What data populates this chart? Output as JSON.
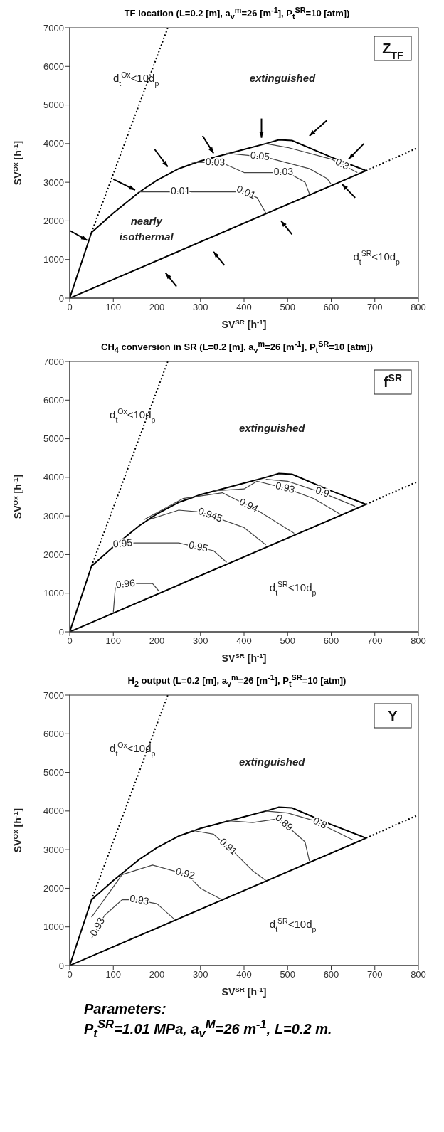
{
  "chart_data": [
    {
      "type": "line",
      "title": "TF location (L=0.2 [m], a$_{v}$$^{m}$=26 [m$^{-1}$], P$_{t}$$^{SR}$=10 [atm])",
      "xlabel": "SV$^{SR}$ [h$^{-1}$]",
      "ylabel": "SV$^{Ox}$ [h$^{-1}$]",
      "xlim": [
        0,
        800
      ],
      "ylim": [
        0,
        7000
      ],
      "xticks": [
        0,
        100,
        200,
        300,
        400,
        500,
        600,
        700,
        800
      ],
      "yticks": [
        0,
        1000,
        2000,
        3000,
        4000,
        5000,
        6000,
        7000
      ],
      "grid": false,
      "legend": false,
      "series": [
        {
          "color": "#000000",
          "x": [
            0,
            50,
            60,
            100,
            160,
            200,
            250,
            300,
            400,
            450,
            480,
            510,
            600,
            680
          ],
          "values": [
            0,
            1700,
            1800,
            2200,
            2750,
            3050,
            3350,
            3550,
            3850,
            4000,
            4100,
            4080,
            3650,
            3300
          ]
        },
        {
          "color": "#000000",
          "x": [
            0,
            680
          ],
          "values": [
            0,
            3300
          ]
        },
        {
          "color": "#000000",
          "line_style": "dotted",
          "x": [
            50,
            225
          ],
          "values": [
            1700,
            7000
          ]
        },
        {
          "color": "#000000",
          "line_style": "dotted",
          "x": [
            680,
            800
          ],
          "values": [
            3300,
            3900
          ]
        },
        {
          "name": "0.01",
          "color": "#444444",
          "x": [
            160,
            400,
            430,
            450
          ],
          "values": [
            2750,
            2750,
            2600,
            2200
          ]
        },
        {
          "name": "0.03",
          "color": "#444444",
          "x": [
            280,
            350,
            400,
            500,
            540,
            550
          ],
          "values": [
            3520,
            3500,
            3250,
            3250,
            3000,
            2700
          ]
        },
        {
          "name": "0.05",
          "color": "#444444",
          "x": [
            360,
            450,
            550,
            590,
            600
          ],
          "values": [
            3750,
            3650,
            3350,
            3100,
            2950
          ]
        },
        {
          "name": "0.3",
          "color": "#444444",
          "x": [
            450,
            500,
            600,
            660
          ],
          "values": [
            4000,
            3900,
            3600,
            3250
          ]
        }
      ],
      "annotations": [
        "Z$_{TF}$",
        "extinguished",
        "d$_{t}$$^{Ox}$<10d$_{p}$",
        "d$_{t}$$^{SR}$<10d$_{p}$",
        "nearly isothermal"
      ]
    },
    {
      "type": "line",
      "title": "CH$_{4}$ conversion in SR (L=0.2 [m], a$_{v}$$^{m}$=26 [m$^{-1}$], P$_{t}$$^{SR}$=10 [atm])",
      "xlabel": "SV$^{SR}$ [h$^{-1}$]",
      "ylabel": "SV$^{Ox}$ [h$^{-1}$]",
      "xlim": [
        0,
        800
      ],
      "ylim": [
        0,
        7000
      ],
      "xticks": [
        0,
        100,
        200,
        300,
        400,
        500,
        600,
        700,
        800
      ],
      "yticks": [
        0,
        1000,
        2000,
        3000,
        4000,
        5000,
        6000,
        7000
      ],
      "grid": false,
      "legend": false,
      "series": [
        {
          "color": "#000000",
          "x": [
            0,
            50,
            60,
            100,
            160,
            200,
            250,
            300,
            400,
            450,
            480,
            510,
            600,
            680
          ],
          "values": [
            0,
            1700,
            1800,
            2200,
            2750,
            3050,
            3350,
            3550,
            3850,
            4000,
            4100,
            4080,
            3650,
            3300
          ]
        },
        {
          "color": "#000000",
          "x": [
            0,
            680
          ],
          "values": [
            0,
            3300
          ]
        },
        {
          "color": "#000000",
          "line_style": "dotted",
          "x": [
            50,
            225
          ],
          "values": [
            1700,
            7000
          ]
        },
        {
          "color": "#000000",
          "line_style": "dotted",
          "x": [
            680,
            800
          ],
          "values": [
            3300,
            3900
          ]
        },
        {
          "name": "0.96",
          "color": "#444444",
          "x": [
            100,
            105,
            150,
            190,
            205
          ],
          "values": [
            500,
            1200,
            1250,
            1250,
            1050
          ]
        },
        {
          "name": "0.95",
          "color": "#444444",
          "x": [
            100,
            150,
            250,
            330,
            360
          ],
          "values": [
            2250,
            2300,
            2300,
            2100,
            1800
          ]
        },
        {
          "name": "0.945",
          "color": "#444444",
          "x": [
            180,
            250,
            300,
            400,
            450
          ],
          "values": [
            2900,
            3150,
            3100,
            2700,
            2250
          ]
        },
        {
          "name": "0.94",
          "color": "#444444",
          "x": [
            170,
            260,
            350,
            430,
            515
          ],
          "values": [
            2900,
            3450,
            3600,
            3150,
            2550
          ]
        },
        {
          "name": "0.93",
          "color": "#444444",
          "x": [
            330,
            400,
            430,
            500,
            560,
            620
          ],
          "values": [
            3650,
            3700,
            3900,
            3700,
            3450,
            3050
          ]
        },
        {
          "name": "0.9",
          "color": "#444444",
          "x": [
            450,
            500,
            580,
            655
          ],
          "values": [
            3950,
            3900,
            3600,
            3250
          ]
        }
      ],
      "annotations": [
        "f$^{SR}$",
        "extinguished",
        "d$_{t}$$^{Ox}$<10d$_{p}$",
        "d$_{t}$$^{SR}$<10d$_{p}$"
      ]
    },
    {
      "type": "line",
      "title": "H$_{2}$ output (L=0.2 [m], a$_{v}$$^{m}$=26 [m$^{-1}$], P$_{t}$$^{SR}$=10 [atm])",
      "xlabel": "SV$^{SR}$ [h$^{-1}$]",
      "ylabel": "SV$^{Ox}$ [h$^{-1}$]",
      "xlim": [
        0,
        800
      ],
      "ylim": [
        0,
        7000
      ],
      "xticks": [
        0,
        100,
        200,
        300,
        400,
        500,
        600,
        700,
        800
      ],
      "yticks": [
        0,
        1000,
        2000,
        3000,
        4000,
        5000,
        6000,
        7000
      ],
      "grid": false,
      "legend": false,
      "series": [
        {
          "color": "#000000",
          "x": [
            0,
            50,
            60,
            100,
            160,
            200,
            250,
            300,
            400,
            450,
            480,
            510,
            600,
            680
          ],
          "values": [
            0,
            1700,
            1800,
            2200,
            2750,
            3050,
            3350,
            3550,
            3850,
            4000,
            4100,
            4080,
            3650,
            3300
          ]
        },
        {
          "color": "#000000",
          "x": [
            0,
            680
          ],
          "values": [
            0,
            3300
          ]
        },
        {
          "color": "#000000",
          "line_style": "dotted",
          "x": [
            50,
            225
          ],
          "values": [
            1700,
            7000
          ]
        },
        {
          "color": "#000000",
          "line_style": "dotted",
          "x": [
            680,
            800
          ],
          "values": [
            3300,
            3900
          ]
        },
        {
          "name": "0.93",
          "color": "#444444",
          "x": [
            50,
            80,
            120,
            150,
            200,
            240
          ],
          "values": [
            700,
            1300,
            1700,
            1700,
            1600,
            1200
          ]
        },
        {
          "name": "0.92",
          "color": "#444444",
          "x": [
            50,
            120,
            190,
            270,
            300,
            350
          ],
          "values": [
            1250,
            2350,
            2600,
            2350,
            2000,
            1700
          ]
        },
        {
          "name": "0.91",
          "color": "#444444",
          "x": [
            280,
            330,
            380,
            420,
            450
          ],
          "values": [
            3500,
            3400,
            2900,
            2450,
            2200
          ]
        },
        {
          "name": "0.89",
          "color": "#444444",
          "x": [
            360,
            420,
            480,
            540,
            550
          ],
          "values": [
            3750,
            3700,
            3800,
            3200,
            2700
          ]
        },
        {
          "name": "0.8",
          "color": "#444444",
          "x": [
            450,
            500,
            560,
            650
          ],
          "values": [
            4000,
            3950,
            3750,
            3250
          ]
        }
      ],
      "annotations": [
        "Y",
        "extinguished",
        "d$_{t}$$^{Ox}$<10d$_{p}$",
        "d$_{t}$$^{SR}$<10d$_{p}$",
        "Parameters:",
        "P$_{t}$$^{SR}$=1.01 MPa, a$_{v}$$^{M}$=26 m$^{-1}$, L=0.2 m."
      ]
    }
  ]
}
